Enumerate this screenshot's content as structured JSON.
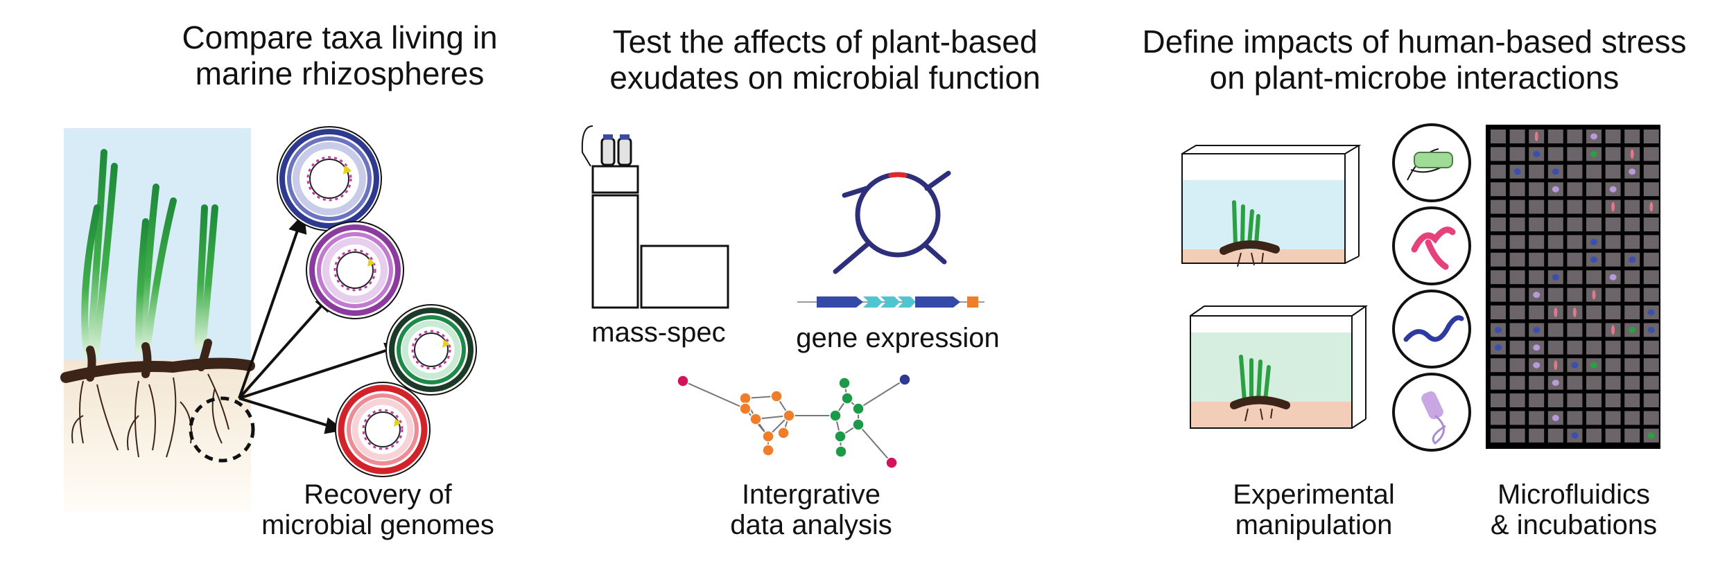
{
  "panels": [
    {
      "title_line1": "Compare taxa living in",
      "title_line2": "marine rhizospheres",
      "label_line1": "Recovery of",
      "label_line2": "microbial genomes"
    },
    {
      "title_line1": "Test the affects of plant-based",
      "title_line2": "exudates on microbial function",
      "label_massspec": "mass-spec",
      "label_gene": "gene expression",
      "label_line1": "Intergrative",
      "label_line2": "data analysis"
    },
    {
      "title_line1": "Define impacts of human-based stress",
      "title_line2": "on plant-microbe interactions",
      "label_exp_line1": "Experimental",
      "label_exp_line2": "manipulation",
      "label_micro_line1": "Microfluidics",
      "label_micro_line2": "& incubations"
    }
  ],
  "colors": {
    "sky": "#d8ecf7",
    "sediment": "#f6ead9",
    "root": "#3d2418",
    "genome_blue": "#2e3a8f",
    "genome_purple": "#8b3a9e",
    "genome_green": "#1e8a4a",
    "genome_red": "#d2232a",
    "network_orange": "#f07d2a",
    "network_green": "#1c9a47",
    "water_blue": "#d6eef5",
    "water_green": "#d5eedf",
    "tank_sediment": "#f2cdb8"
  }
}
